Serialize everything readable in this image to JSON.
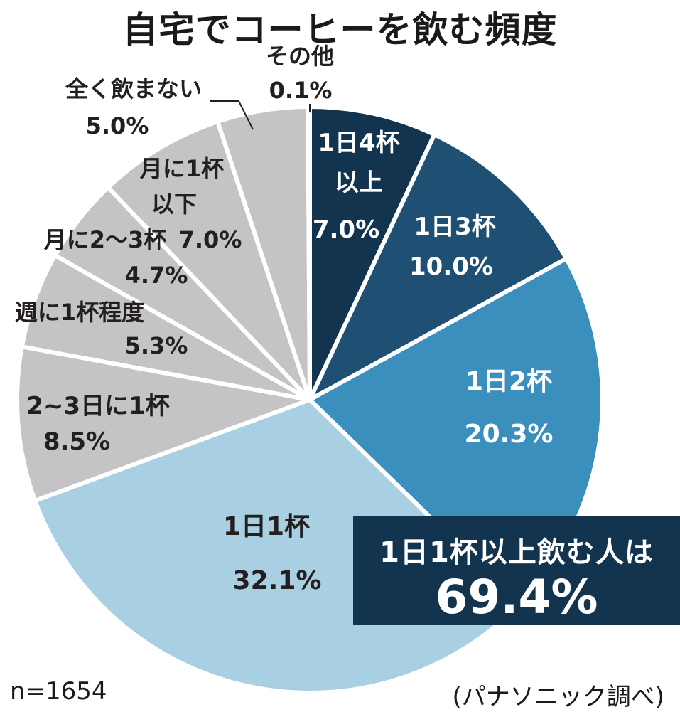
{
  "title": "自宅でコーヒーを飲む頻度",
  "sample_note": "n=1654",
  "source_note": "(パナソニック調べ)",
  "callout": {
    "line1": "1日1杯以上飲む人は",
    "value": "69.4%"
  },
  "colors": {
    "dark_navy": "#13344e",
    "navy": "#1f4f72",
    "mid_blue": "#3b8fbd",
    "light_blue": "#a9cfe3",
    "gray": "#c4c4c6",
    "label_dark": "#231f20",
    "label_light": "#ffffff"
  },
  "chart_data": {
    "type": "pie",
    "title": "自宅でコーヒーを飲む頻度",
    "slices": [
      {
        "label": "1日4杯以上",
        "value": 7.0,
        "value_label": "7.0%",
        "color": "#13344e"
      },
      {
        "label": "1日3杯",
        "value": 10.0,
        "value_label": "10.0%",
        "color": "#1f4f72"
      },
      {
        "label": "1日2杯",
        "value": 20.3,
        "value_label": "20.3%",
        "color": "#3b8fbd"
      },
      {
        "label": "1日1杯",
        "value": 32.1,
        "value_label": "32.1%",
        "color": "#a9cfe3"
      },
      {
        "label": "2~3日に1杯",
        "value": 8.5,
        "value_label": "8.5%",
        "color": "#c4c4c6"
      },
      {
        "label": "週に1杯程度",
        "value": 5.3,
        "value_label": "5.3%",
        "color": "#c4c4c6"
      },
      {
        "label": "月に2～3杯",
        "value": 4.7,
        "value_label": "4.7%",
        "color": "#c4c4c6"
      },
      {
        "label": "月に1杯以下",
        "value": 7.0,
        "value_label": "7.0%",
        "color": "#c4c4c6"
      },
      {
        "label": "全く飲まない",
        "value": 5.0,
        "value_label": "5.0%",
        "color": "#c4c4c6"
      },
      {
        "label": "その他",
        "value": 0.1,
        "value_label": "0.1%",
        "color": "#c4c4c6"
      }
    ]
  }
}
